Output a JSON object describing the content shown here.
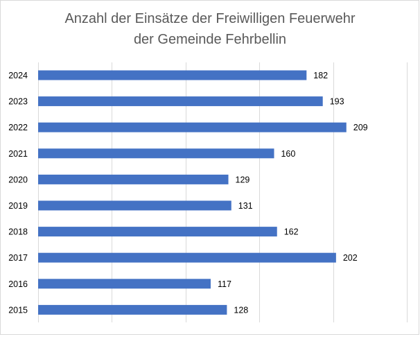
{
  "chart_data": {
    "type": "bar",
    "orientation": "horizontal",
    "title_lines": [
      "Anzahl der Einsätze der Freiwilligen Feuerwehr",
      "der Gemeinde Fehrbellin"
    ],
    "categories": [
      "2024",
      "2023",
      "2022",
      "2021",
      "2020",
      "2019",
      "2018",
      "2017",
      "2016",
      "2015"
    ],
    "values": [
      182,
      193,
      209,
      160,
      129,
      131,
      162,
      202,
      117,
      128
    ],
    "xlim": [
      0,
      250
    ],
    "grid": true,
    "legend": "none",
    "bar_color": "#4472c4",
    "data_labels": true
  }
}
